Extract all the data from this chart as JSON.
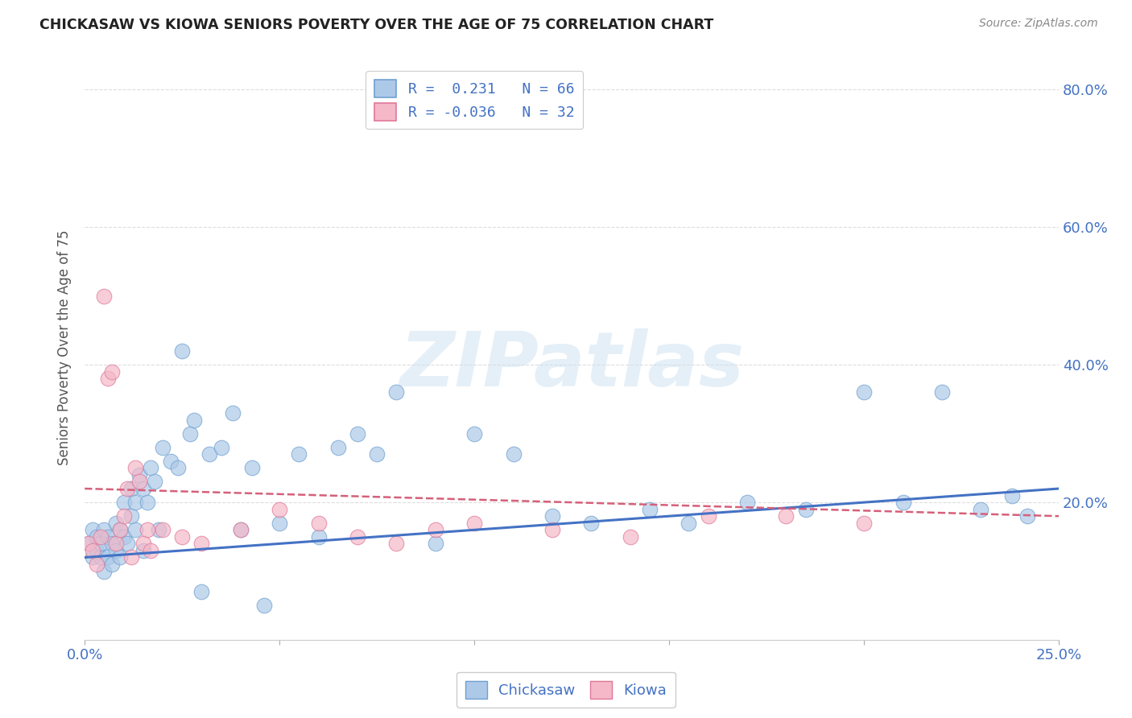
{
  "title": "CHICKASAW VS KIOWA SENIORS POVERTY OVER THE AGE OF 75 CORRELATION CHART",
  "source": "Source: ZipAtlas.com",
  "ylabel": "Seniors Poverty Over the Age of 75",
  "xlim": [
    0.0,
    0.25
  ],
  "ylim": [
    0.0,
    0.85
  ],
  "chickasaw_color": "#adc9e8",
  "chickasaw_edge": "#6fa0d0",
  "kiowa_color": "#f5b8c8",
  "kiowa_edge": "#e07898",
  "chickasaw_line_color": "#4472c4",
  "kiowa_line_color": "#d4607a",
  "watermark": "ZIPatlas",
  "background_color": "#ffffff",
  "grid_color": "#dddddd",
  "chick_R": 0.231,
  "chick_N": 66,
  "kiowa_R": -0.036,
  "kiowa_N": 32,
  "chick_trend_x0": 0.0,
  "chick_trend_y0": 0.12,
  "chick_trend_x1": 0.25,
  "chick_trend_y1": 0.22,
  "kiowa_trend_x0": 0.0,
  "kiowa_trend_y0": 0.22,
  "kiowa_trend_x1": 0.25,
  "kiowa_trend_y1": 0.18,
  "chickasaw_x": [
    0.001,
    0.002,
    0.002,
    0.003,
    0.003,
    0.004,
    0.004,
    0.005,
    0.005,
    0.006,
    0.006,
    0.007,
    0.007,
    0.008,
    0.008,
    0.009,
    0.009,
    0.01,
    0.01,
    0.011,
    0.012,
    0.012,
    0.013,
    0.013,
    0.014,
    0.015,
    0.015,
    0.016,
    0.017,
    0.018,
    0.019,
    0.02,
    0.022,
    0.024,
    0.025,
    0.027,
    0.028,
    0.03,
    0.032,
    0.035,
    0.038,
    0.04,
    0.043,
    0.046,
    0.05,
    0.055,
    0.06,
    0.065,
    0.07,
    0.075,
    0.08,
    0.09,
    0.1,
    0.11,
    0.12,
    0.13,
    0.145,
    0.155,
    0.17,
    0.185,
    0.2,
    0.21,
    0.22,
    0.23,
    0.238,
    0.242
  ],
  "chickasaw_y": [
    0.14,
    0.12,
    0.16,
    0.13,
    0.15,
    0.12,
    0.14,
    0.1,
    0.16,
    0.12,
    0.15,
    0.11,
    0.14,
    0.13,
    0.17,
    0.12,
    0.16,
    0.15,
    0.2,
    0.14,
    0.18,
    0.22,
    0.16,
    0.2,
    0.24,
    0.13,
    0.22,
    0.2,
    0.25,
    0.23,
    0.16,
    0.28,
    0.26,
    0.25,
    0.42,
    0.3,
    0.32,
    0.07,
    0.27,
    0.28,
    0.33,
    0.16,
    0.25,
    0.05,
    0.17,
    0.27,
    0.15,
    0.28,
    0.3,
    0.27,
    0.36,
    0.14,
    0.3,
    0.27,
    0.18,
    0.17,
    0.19,
    0.17,
    0.2,
    0.19,
    0.36,
    0.2,
    0.36,
    0.19,
    0.21,
    0.18
  ],
  "kiowa_x": [
    0.001,
    0.002,
    0.003,
    0.004,
    0.005,
    0.006,
    0.007,
    0.008,
    0.009,
    0.01,
    0.011,
    0.012,
    0.013,
    0.014,
    0.015,
    0.016,
    0.017,
    0.02,
    0.025,
    0.03,
    0.04,
    0.05,
    0.06,
    0.07,
    0.08,
    0.09,
    0.1,
    0.12,
    0.14,
    0.16,
    0.18,
    0.2
  ],
  "kiowa_y": [
    0.14,
    0.13,
    0.11,
    0.15,
    0.5,
    0.38,
    0.39,
    0.14,
    0.16,
    0.18,
    0.22,
    0.12,
    0.25,
    0.23,
    0.14,
    0.16,
    0.13,
    0.16,
    0.15,
    0.14,
    0.16,
    0.19,
    0.17,
    0.15,
    0.14,
    0.16,
    0.17,
    0.16,
    0.15,
    0.18,
    0.18,
    0.17
  ]
}
